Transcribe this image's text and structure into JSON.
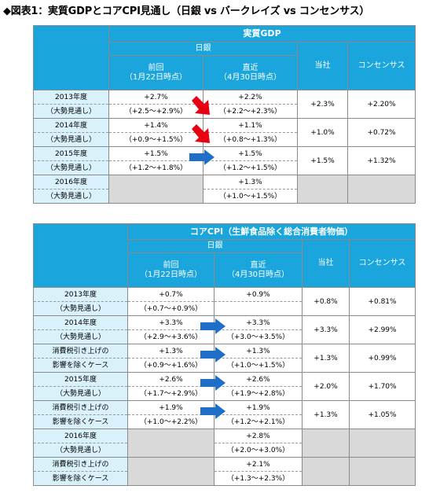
{
  "title": "◆図表1：実質GDPとコアCPI見通し（日銀 vs バークレイズ vs コンセンサス）",
  "gdp": {
    "header": "実質GDP",
    "boj": "日銀",
    "prev": "前回",
    "prev_date": "（1月22日時点）",
    "latest": "直近",
    "latest_date": "（4月30日時点）",
    "ours": "当社",
    "consensus": "コンセンサス",
    "rows": [
      {
        "label1": "2013年度",
        "label2": "（大勢見通し）",
        "prev": "+2.7%",
        "prev_range": "（+2.5〜+2.9%）",
        "latest": "+2.2%",
        "latest_range": "（+2.2〜+2.3%）",
        "ours": "+2.3%",
        "consensus": "+2.20%",
        "arrow": "down"
      },
      {
        "label1": "2014年度",
        "label2": "（大勢見通し）",
        "prev": "+1.4%",
        "prev_range": "（+0.9〜+1.5%）",
        "latest": "+1.1%",
        "latest_range": "（+0.8〜+1.3%）",
        "ours": "+1.0%",
        "consensus": "+0.72%",
        "arrow": "down"
      },
      {
        "label1": "2015年度",
        "label2": "（大勢見通し）",
        "prev": "+1.5%",
        "prev_range": "（+1.2〜+1.8%）",
        "latest": "+1.5%",
        "latest_range": "（+1.2〜+1.5%）",
        "ours": "+1.5%",
        "consensus": "+1.32%",
        "arrow": "flat"
      },
      {
        "label1": "2016年度",
        "label2": "（大勢見通し）",
        "prev": "",
        "prev_range": "",
        "latest": "+1.3%",
        "latest_range": "（+1.0〜+1.5%）",
        "ours": "",
        "consensus": "",
        "arrow": "none"
      }
    ]
  },
  "cpi": {
    "header": "コアCPI（生鮮食品除く総合消費者物価）",
    "boj": "日銀",
    "prev": "前回",
    "prev_date": "（1月22日時点）",
    "latest": "直近",
    "latest_date": "（4月30日時点）",
    "ours": "当社",
    "consensus": "コンセンサス",
    "rows": [
      {
        "label1": "2013年度",
        "label2": "（大勢見通し）",
        "prev": "+0.7%",
        "prev_range": "（+0.7〜+0.9%）",
        "latest": "+0.9%",
        "latest_range": "",
        "ours": "+0.8%",
        "consensus": "+0.81%",
        "arrow": "none"
      },
      {
        "label1": "2014年度",
        "label2": "（大勢見通し）",
        "prev": "+3.3%",
        "prev_range": "（+2.9〜+3.6%）",
        "latest": "+3.3%",
        "latest_range": "（+3.0〜+3.5%）",
        "ours": "+3.3%",
        "consensus": "+2.99%",
        "arrow": "flat"
      },
      {
        "label1": "消費税引き上げの",
        "label2": "影響を除くケース",
        "prev": "+1.3%",
        "prev_range": "（+0.9〜+1.6%）",
        "latest": "+1.3%",
        "latest_range": "（+1.0〜+1.5%）",
        "ours": "+1.3%",
        "consensus": "+0.99%",
        "arrow": "flat"
      },
      {
        "label1": "2015年度",
        "label2": "（大勢見通し）",
        "prev": "+2.6%",
        "prev_range": "（+1.7〜+2.9%）",
        "latest": "+2.6%",
        "latest_range": "（+1.9〜+2.8%）",
        "ours": "+2.0%",
        "consensus": "+1.70%",
        "arrow": "flat"
      },
      {
        "label1": "消費税引き上げの",
        "label2": "影響を除くケース",
        "prev": "+1.9%",
        "prev_range": "（+1.0〜+2.2%）",
        "latest": "+1.9%",
        "latest_range": "（+1.2〜+2.1%）",
        "ours": "+1.3%",
        "consensus": "+1.05%",
        "arrow": "flat"
      },
      {
        "label1": "2016年度",
        "label2": "（大勢見通し）",
        "prev": "",
        "prev_range": "",
        "latest": "+2.8%",
        "latest_range": "（+2.0〜+3.0%）",
        "ours": "",
        "consensus": "",
        "arrow": "none"
      },
      {
        "label1": "消費税引き上げの",
        "label2": "影響を除くケース",
        "prev": "",
        "prev_range": "",
        "latest": "+2.1%",
        "latest_range": "（+1.3〜+2.3%）",
        "ours": "",
        "consensus": "",
        "arrow": "none"
      }
    ]
  },
  "colors": {
    "header": "#1aa6dc",
    "label_bg": "#d9f1fb",
    "gray": "#d9d9d9",
    "arrow_down": "#e60012",
    "arrow_flat": "#1f6fc9"
  }
}
